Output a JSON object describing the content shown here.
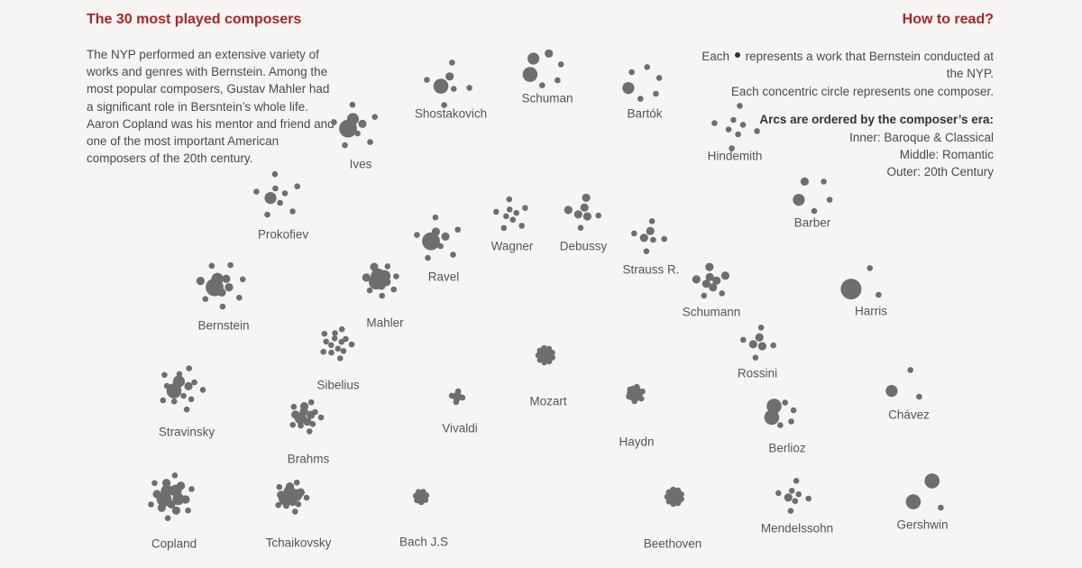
{
  "title": "The 30 most played composers",
  "intro": [
    "The NYP performed an extensive variety of works and genres with Bernstein. Among the most popular composers, Gustav Mahler had a significant role in Bersntein’s whole life.",
    "Aaron Copland was his mentor and friend and one of the most important American composers of the 20th century."
  ],
  "how_to": {
    "title": "How to read?",
    "line1_before": "Each",
    "line1_after": "represents a work that Bernstein conducted at the NYP.",
    "line2": "Each concentric circle represents one composer.",
    "era_heading": "Arcs are ordered by the composer’s era:",
    "eras": [
      "Inner: Baroque & Classical",
      "Middle: Romantic",
      "Outer: 20th Century"
    ]
  },
  "colors": {
    "accent": "#a8252a",
    "dot": "#6e6e70",
    "text": "#555555",
    "background": "#f7f5f4"
  },
  "chart_data": {
    "type": "scatter",
    "encoding": "Each dot = one work conducted; dot size = times performed",
    "composers": [
      {
        "name": "Shostakovich",
        "era": "20th Century",
        "works": [
          2.5,
          1.4,
          1,
          1,
          1,
          1,
          1
        ]
      },
      {
        "name": "Schuman",
        "era": "20th Century",
        "works": [
          2.5,
          2,
          1.4,
          1,
          1,
          1
        ]
      },
      {
        "name": "Bartók",
        "era": "20th Century",
        "works": [
          2,
          1,
          1,
          1,
          1,
          1
        ]
      },
      {
        "name": "Ives",
        "era": "20th Century",
        "works": [
          3,
          2,
          1.4,
          1,
          1,
          1,
          1,
          1,
          1
        ]
      },
      {
        "name": "Hindemith",
        "era": "20th Century",
        "works": [
          1,
          1,
          1,
          1,
          1,
          1,
          1,
          1
        ]
      },
      {
        "name": "Prokofiev",
        "era": "20th Century",
        "works": [
          2,
          1,
          1,
          1,
          1,
          1,
          1,
          1,
          1
        ]
      },
      {
        "name": "Wagner",
        "era": "Romantic",
        "works": [
          1,
          1,
          1,
          1,
          1,
          1,
          1,
          1,
          1
        ]
      },
      {
        "name": "Debussy",
        "era": "Romantic",
        "works": [
          1.4,
          1.4,
          1.4,
          1.4,
          1.4,
          1,
          1
        ]
      },
      {
        "name": "Barber",
        "era": "20th Century",
        "works": [
          2,
          1.4,
          1,
          1,
          1
        ]
      },
      {
        "name": "Ravel",
        "era": "20th Century",
        "works": [
          3,
          1.4,
          1.4,
          1,
          1,
          1,
          1,
          1,
          1
        ]
      },
      {
        "name": "Strauss R.",
        "era": "Romantic",
        "works": [
          1.4,
          1.4,
          1,
          1,
          1,
          1,
          1
        ]
      },
      {
        "name": "Bernstein",
        "era": "20th Century",
        "works": [
          3,
          2,
          1.4,
          1.4,
          1.4,
          1.4,
          1,
          1,
          1,
          1,
          1,
          1
        ]
      },
      {
        "name": "Mahler",
        "era": "Romantic",
        "works": [
          2.5,
          2.5,
          2,
          1.4,
          1.4,
          1.4,
          1.4,
          1,
          1,
          1,
          1,
          1
        ]
      },
      {
        "name": "Schumann",
        "era": "Romantic",
        "works": [
          1.4,
          1.4,
          1.4,
          1.4,
          1.4,
          1.4,
          1.4,
          1,
          1
        ]
      },
      {
        "name": "Harris",
        "era": "20th Century",
        "works": [
          3.5,
          1,
          1
        ]
      },
      {
        "name": "Sibelius",
        "era": "Romantic",
        "works": [
          1,
          1,
          1,
          1,
          1,
          1,
          1,
          1,
          1,
          1,
          1,
          1,
          1,
          1
        ]
      },
      {
        "name": "Mozart",
        "era": "Classical",
        "works": [
          1.4,
          1.4,
          1.4,
          1.4,
          1.4,
          1.4,
          1.4,
          1.4,
          1.4,
          1,
          1,
          1,
          1,
          1,
          1,
          1,
          1,
          1,
          1,
          1,
          1,
          1,
          1,
          1
        ]
      },
      {
        "name": "Rossini",
        "era": "Romantic",
        "works": [
          1.4,
          1.4,
          1.4,
          1,
          1,
          1,
          1
        ]
      },
      {
        "name": "Stravinsky",
        "era": "20th Century",
        "works": [
          2.5,
          2,
          1.4,
          1,
          1,
          1,
          1,
          1,
          1,
          1,
          1,
          1,
          1,
          1
        ]
      },
      {
        "name": "Vivaldi",
        "era": "Baroque",
        "works": [
          1,
          1,
          1,
          1,
          1,
          1,
          1,
          1
        ]
      },
      {
        "name": "Haydn",
        "era": "Classical",
        "works": [
          2,
          1.4,
          1.4,
          1.4,
          1.4,
          1.4,
          1.4,
          1,
          1,
          1,
          1,
          1,
          1,
          1,
          1,
          1,
          1,
          1
        ]
      },
      {
        "name": "Chávez",
        "era": "20th Century",
        "works": [
          2,
          1,
          1
        ]
      },
      {
        "name": "Brahms",
        "era": "Romantic",
        "works": [
          2,
          1.4,
          1.4,
          1.4,
          1.4,
          1.4,
          1,
          1,
          1,
          1,
          1,
          1,
          1,
          1
        ]
      },
      {
        "name": "Berlioz",
        "era": "Romantic",
        "works": [
          2.5,
          2.5,
          1,
          1,
          1,
          1
        ]
      },
      {
        "name": "Copland",
        "era": "20th Century",
        "works": [
          2.5,
          2,
          2,
          2,
          1.4,
          1.4,
          1.4,
          1.4,
          1.4,
          1.4,
          1.4,
          1,
          1,
          1,
          1,
          1,
          1
        ]
      },
      {
        "name": "Tchaikovsky",
        "era": "Romantic",
        "works": [
          2.5,
          2,
          2,
          1.4,
          1.4,
          1.4,
          1.4,
          1,
          1,
          1,
          1,
          1,
          1,
          1
        ]
      },
      {
        "name": "Bach J.S",
        "era": "Baroque",
        "works": [
          1,
          1,
          1,
          1,
          1,
          1,
          1,
          1,
          1,
          1,
          1,
          1
        ]
      },
      {
        "name": "Beethoven",
        "era": "Classical",
        "works": [
          2,
          2,
          2,
          2,
          1.4,
          1.4,
          1.4,
          1.4,
          1.4,
          1.4,
          1.4,
          1.4,
          1.4,
          1,
          1,
          1,
          1,
          1,
          1,
          1,
          1,
          1,
          1,
          1
        ]
      },
      {
        "name": "Mendelssohn",
        "era": "Romantic",
        "works": [
          1.4,
          1,
          1,
          1,
          1,
          1,
          1,
          1
        ]
      },
      {
        "name": "Gershwin",
        "era": "20th Century",
        "works": [
          2.5,
          2.5,
          1
        ]
      }
    ]
  }
}
